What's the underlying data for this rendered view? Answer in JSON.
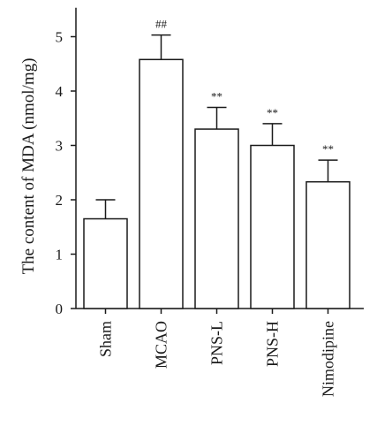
{
  "chart_data": {
    "type": "bar",
    "ylabel": "The content of MDA (nmol/mg)",
    "xlabel": "",
    "title": "",
    "ylim": [
      0,
      5.5
    ],
    "yticks": [
      0,
      1,
      2,
      3,
      4,
      5
    ],
    "categories": [
      "Sham",
      "MCAO",
      "PNS-L",
      "PNS-H",
      "Nimodipine"
    ],
    "values": [
      1.65,
      4.58,
      3.3,
      3.0,
      2.33
    ],
    "errors": [
      0.35,
      0.45,
      0.4,
      0.4,
      0.4
    ],
    "annotations": [
      "",
      "##",
      "**",
      "**",
      "**"
    ],
    "grid": false,
    "bar_fill": "#ffffff",
    "bar_stroke": "#1a1a1a"
  }
}
